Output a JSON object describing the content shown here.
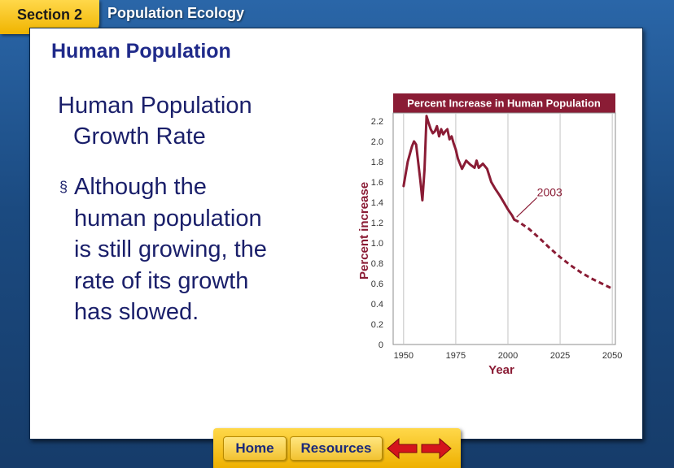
{
  "header": {
    "section_label": "Section 2",
    "title": "Population Ecology"
  },
  "slide": {
    "heading": "Human Population",
    "subheading_line1": "Human Population",
    "subheading_line2": "Growth Rate",
    "bullet_mark": "§",
    "bullet_lines": [
      "Although the",
      "human population",
      "is still growing, the",
      "rate of its growth",
      "has slowed."
    ]
  },
  "footer": {
    "home_label": "Home",
    "resources_label": "Resources",
    "back_icon": "arrow-left-icon",
    "forward_icon": "arrow-right-icon"
  },
  "colors": {
    "background": "#1f4f86",
    "tab": "#f5c21a",
    "heading": "#1f2a8a",
    "chart_line": "#8a1c35",
    "chart_title_bg": "#8a1c35"
  },
  "chart_data": {
    "type": "line",
    "title": "Percent Increase in Human Population",
    "xlabel": "Year",
    "ylabel": "Percent increase",
    "xlim": [
      1945,
      2050
    ],
    "ylim": [
      0,
      2.2
    ],
    "xticks": [
      1950,
      1975,
      2000,
      2025,
      2050
    ],
    "yticks": [
      0,
      0.2,
      0.4,
      0.6,
      0.8,
      1.0,
      1.2,
      1.4,
      1.6,
      1.8,
      2.0,
      2.2
    ],
    "ytick_labels": [
      "0",
      "0.2",
      "0.4",
      "0.6",
      "0.8",
      "1.0",
      "1.2",
      "1.4",
      "1.6",
      "1.8",
      "2.0",
      "2.2"
    ],
    "grid": "vertical",
    "annotation": {
      "text": "2003",
      "x": 2003,
      "y": 1.23
    },
    "series": [
      {
        "style": "solid",
        "x": [
          1950,
          1952,
          1954,
          1955,
          1956,
          1958,
          1959,
          1960,
          1961,
          1962,
          1963,
          1964,
          1965,
          1966,
          1967,
          1968,
          1969,
          1970,
          1971,
          1972,
          1973,
          1974,
          1975,
          1976,
          1977,
          1978,
          1980,
          1982,
          1984,
          1985,
          1986,
          1988,
          1990,
          1992,
          1994,
          1996,
          1998,
          2000,
          2002,
          2003
        ],
        "y": [
          1.56,
          1.8,
          1.95,
          2.0,
          1.97,
          1.62,
          1.42,
          1.72,
          2.25,
          2.18,
          2.12,
          2.08,
          2.1,
          2.15,
          2.05,
          2.12,
          2.07,
          2.1,
          2.12,
          2.02,
          2.05,
          1.98,
          1.92,
          1.83,
          1.78,
          1.73,
          1.81,
          1.77,
          1.74,
          1.81,
          1.74,
          1.78,
          1.73,
          1.6,
          1.53,
          1.47,
          1.4,
          1.33,
          1.27,
          1.23
        ]
      },
      {
        "style": "dashed",
        "x": [
          2003,
          2005,
          2010,
          2015,
          2020,
          2025,
          2030,
          2035,
          2040,
          2045,
          2050
        ],
        "y": [
          1.23,
          1.21,
          1.14,
          1.05,
          0.95,
          0.86,
          0.78,
          0.71,
          0.65,
          0.6,
          0.55
        ]
      }
    ]
  }
}
